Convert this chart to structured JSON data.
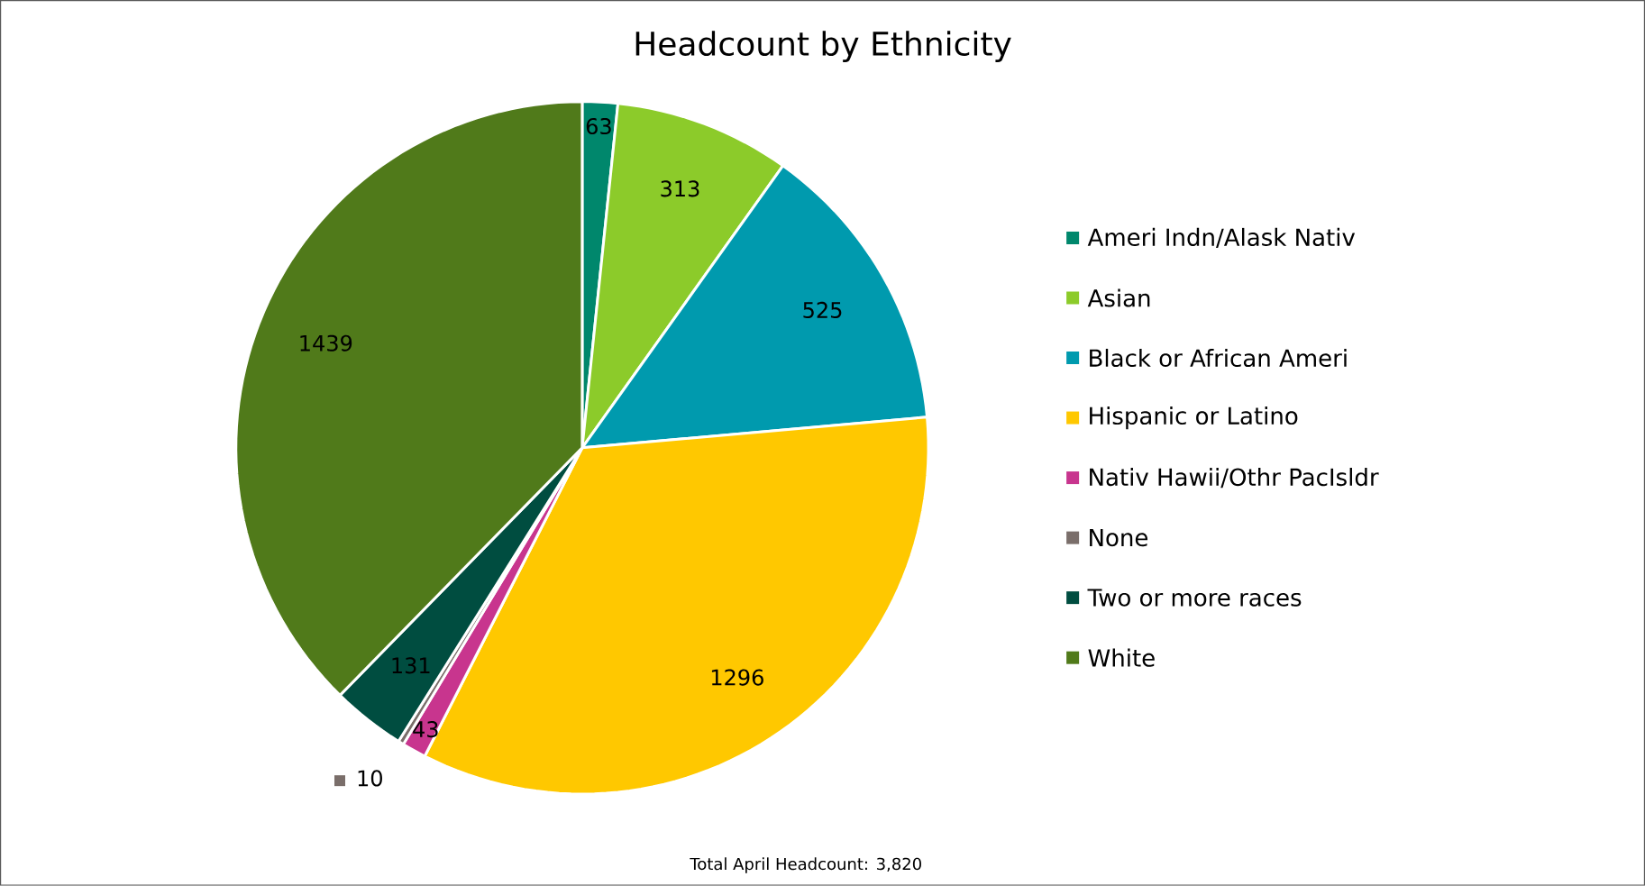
{
  "chart_data": {
    "type": "pie",
    "title": "Headcount by Ethnicity",
    "categories": [
      "Ameri Indn/Alask Nativ",
      "Asian",
      "Black or African Ameri",
      "Hispanic or Latino",
      "Nativ Hawii/Othr PacIsldr",
      "None",
      "Two or more races",
      "White"
    ],
    "values": [
      63,
      313,
      525,
      1296,
      43,
      10,
      131,
      1439
    ],
    "colors": [
      "#00876c",
      "#8ccb2a",
      "#009aae",
      "#ffc800",
      "#c8358e",
      "#7a6e6a",
      "#004d40",
      "#507a1a"
    ],
    "data_labels": true,
    "legend": "right",
    "annotations": [
      "Total April Headcount: 3,820"
    ]
  }
}
